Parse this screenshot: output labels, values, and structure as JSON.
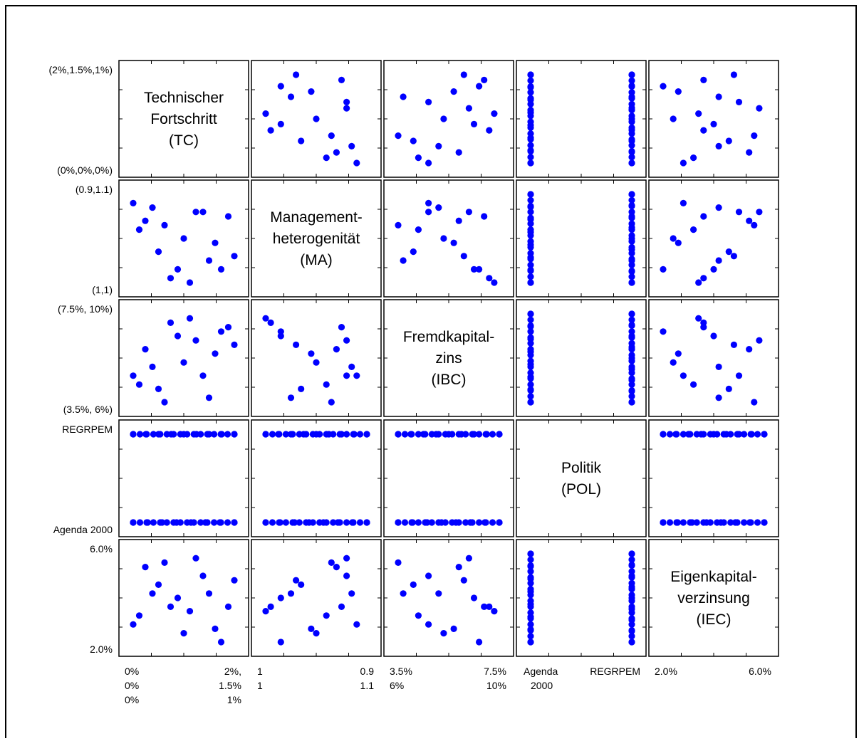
{
  "chart_data": {
    "type": "scatter",
    "subtype": "scatter-plot-matrix",
    "point_color": "#0000ff",
    "variables": [
      {
        "key": "TC",
        "label_lines": [
          "Technischer",
          "Fortschritt",
          "(TC)"
        ],
        "y_tick_top": "(2%,1.5%,1%)",
        "y_tick_bottom": "(0%,0%,0%)",
        "x_tick_left": [
          "0%",
          "0%",
          "0%"
        ],
        "x_tick_right": [
          "2%,",
          "1.5%",
          "1%"
        ]
      },
      {
        "key": "MA",
        "label_lines": [
          "Management-",
          "heterogenität",
          "(MA)"
        ],
        "y_tick_top": "(0.9,1.1)",
        "y_tick_bottom": "(1,1)",
        "x_tick_left": [
          "1",
          "1"
        ],
        "x_tick_right": [
          "0.9",
          "1.1"
        ]
      },
      {
        "key": "IBC",
        "label_lines": [
          "Fremdkapital-",
          "zins",
          "(IBC)"
        ],
        "y_tick_top": "(7.5%, 10%)",
        "y_tick_bottom": "(3.5%, 6%)",
        "x_tick_left": [
          "3.5%",
          "6%"
        ],
        "x_tick_right": [
          "7.5%",
          "10%"
        ]
      },
      {
        "key": "POL",
        "label_lines": [
          "Politik",
          "(POL)"
        ],
        "y_tick_top": "REGRPEM",
        "y_tick_bottom": "Agenda 2000",
        "x_tick_left": [
          "Agenda",
          "2000"
        ],
        "x_tick_right": [
          "REGRPEM"
        ]
      },
      {
        "key": "IEC",
        "label_lines": [
          "Eigenkapital-",
          "verzinsung",
          "(IEC)"
        ],
        "y_tick_top": "6.0%",
        "y_tick_bottom": "2.0%",
        "x_tick_left": [
          "2.0%"
        ],
        "x_tick_right": [
          "6.0%"
        ]
      }
    ],
    "samples": {
      "note_units": "normalized level within each variable's range (0 = low end, 1 = high end); POL is categorical 0 = Agenda 2000, 1 = REGRPEM",
      "TC": [
        0.0,
        0.12,
        0.25,
        0.37,
        0.5,
        0.62,
        0.75,
        0.87,
        1.0,
        0.06,
        0.19,
        0.31,
        0.44,
        0.56,
        0.69,
        0.81,
        0.94
      ],
      "MA": [
        0.9,
        0.7,
        0.35,
        0.05,
        0.5,
        0.8,
        0.25,
        0.15,
        0.3,
        0.6,
        0.85,
        0.65,
        0.15,
        0.0,
        0.8,
        0.45,
        0.75
      ],
      "IBC": [
        0.3,
        0.6,
        0.15,
        0.9,
        0.45,
        0.7,
        0.05,
        0.8,
        0.65,
        0.2,
        0.4,
        0.0,
        0.75,
        0.95,
        0.3,
        0.55,
        0.85
      ],
      "POL": [
        0,
        0,
        0,
        0,
        0,
        0,
        0,
        0,
        1,
        1,
        1,
        1,
        1,
        1,
        1,
        1,
        1
      ],
      "IEC": [
        0.2,
        0.85,
        0.65,
        0.4,
        0.1,
        0.95,
        0.55,
        0.0,
        0.7,
        0.3,
        0.55,
        0.9,
        0.5,
        0.35,
        0.75,
        0.15,
        0.4
      ]
    }
  }
}
